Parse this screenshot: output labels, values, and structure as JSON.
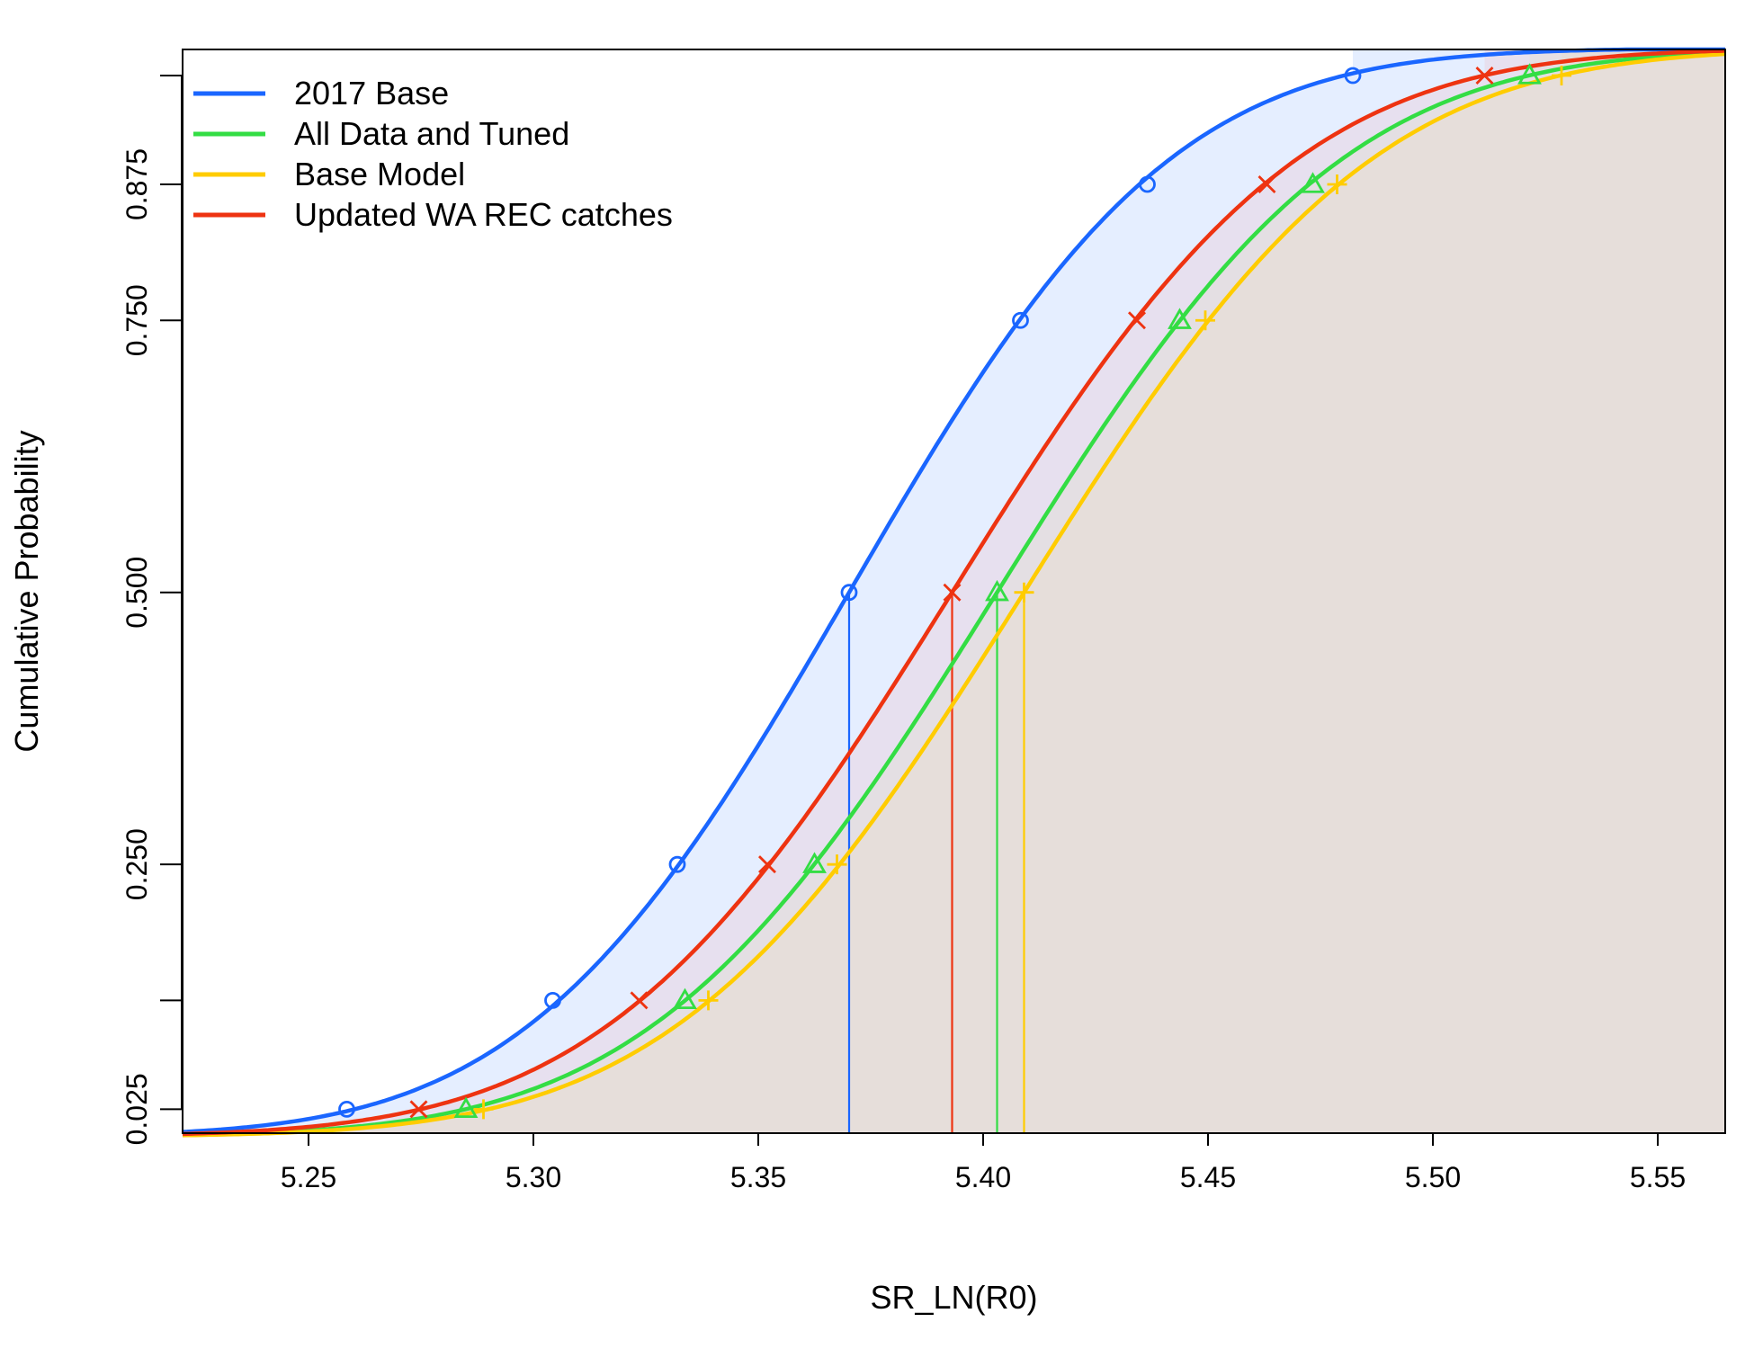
{
  "chart_data": {
    "type": "line",
    "title": "",
    "xlabel": "SR_LN(R0)",
    "ylabel": "Cumulative Probability",
    "xlim": [
      5.222,
      5.565
    ],
    "ylim": [
      0.003,
      0.999
    ],
    "xticks": [
      5.25,
      5.3,
      5.35,
      5.4,
      5.45,
      5.5,
      5.55
    ],
    "xtick_labels": [
      "5.25",
      "5.30",
      "5.35",
      "5.40",
      "5.45",
      "5.50",
      "5.55"
    ],
    "yticks": [
      0.025,
      0.125,
      0.25,
      0.5,
      0.75,
      0.875,
      0.975
    ],
    "ytick_labels": [
      "0.025",
      "",
      "0.250",
      "0.500",
      "0.750",
      "0.875",
      ""
    ],
    "legend_position": "top-left",
    "grid": false,
    "shaded_area_under_curves": true,
    "vertical_lines_at": "median (probability 0.500)",
    "series": [
      {
        "name": "2017 Base",
        "color": "#1a66ff",
        "fill": "#cfe0ff",
        "marker": "circle",
        "mean": 5.3702,
        "sd": 0.0561,
        "quantile_probs": [
          0.025,
          0.125,
          0.25,
          0.5,
          0.75,
          0.875,
          0.975
        ],
        "quantile_x": [
          5.2585,
          5.3043,
          5.332,
          5.3702,
          5.4083,
          5.4365,
          5.4822
        ]
      },
      {
        "name": "All Data and Tuned",
        "color": "#33dd44",
        "fill": "#d9ead0",
        "marker": "triangle",
        "mean": 5.4031,
        "sd": 0.0603,
        "quantile_probs": [
          0.025,
          0.125,
          0.25,
          0.5,
          0.75,
          0.875,
          0.975
        ],
        "quantile_x": [
          5.285,
          5.3337,
          5.3625,
          5.4031,
          5.4437,
          5.4733,
          5.5215
        ]
      },
      {
        "name": "Base Model",
        "color": "#ffcc00",
        "fill": "#e6e6bf",
        "marker": "plus",
        "mean": 5.4091,
        "sd": 0.0608,
        "quantile_probs": [
          0.025,
          0.125,
          0.25,
          0.5,
          0.75,
          0.875,
          0.975
        ],
        "quantile_x": [
          5.2889,
          5.3389,
          5.3675,
          5.4091,
          5.4494,
          5.4787,
          5.5286
        ]
      },
      {
        "name": "Updated WA REC catches",
        "color": "#ee3311",
        "fill": "#e9d6e2",
        "marker": "x",
        "mean": 5.3931,
        "sd": 0.0603,
        "quantile_probs": [
          0.025,
          0.125,
          0.25,
          0.5,
          0.75,
          0.875,
          0.975
        ],
        "quantile_x": [
          5.2745,
          5.3235,
          5.352,
          5.3931,
          5.4342,
          5.4631,
          5.5115
        ]
      }
    ]
  }
}
